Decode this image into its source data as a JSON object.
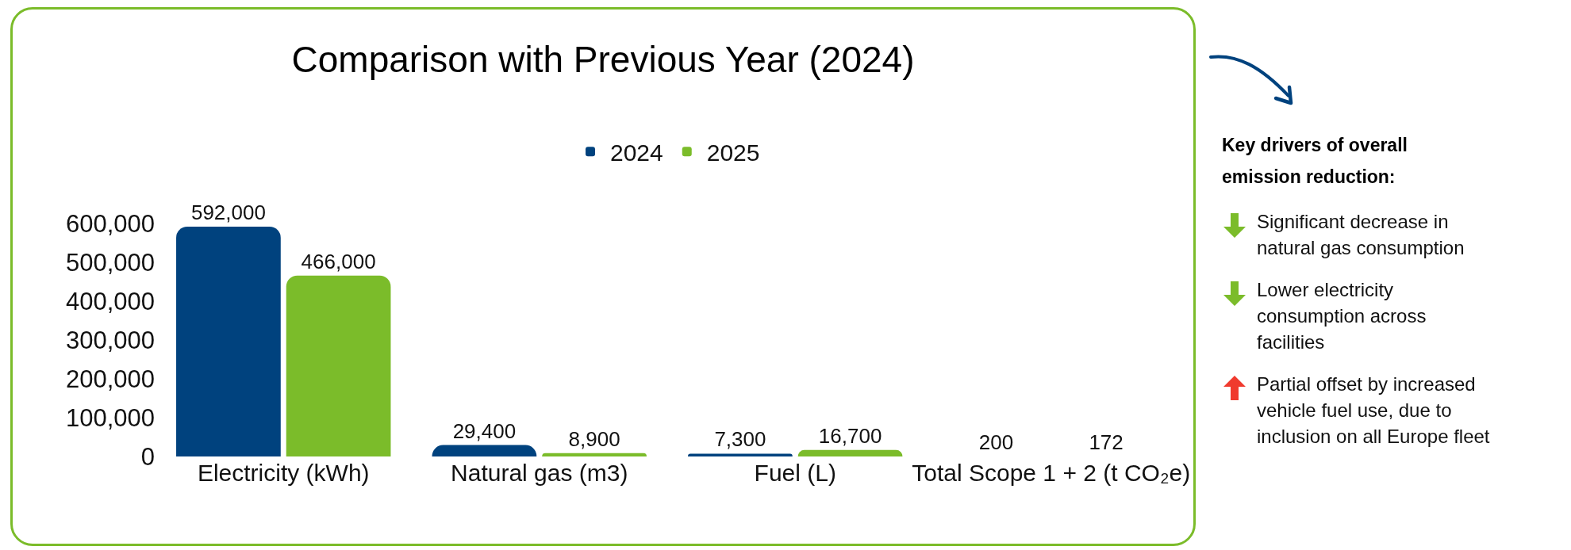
{
  "chart_data": {
    "type": "bar",
    "title": "Comparison with Previous Year (2024)",
    "categories": [
      "Electricity (kWh)",
      "Natural gas (m3)",
      "Fuel (L)",
      "Total Scope 1 + 2 (t CO₂e)"
    ],
    "series": [
      {
        "name": "2024",
        "color": "#00427e",
        "values": [
          592000,
          29400,
          7300,
          200
        ],
        "value_labels": [
          "592,000",
          "29,400",
          "7,300",
          "200"
        ]
      },
      {
        "name": "2025",
        "color": "#7bbc2a",
        "values": [
          466000,
          8900,
          16700,
          172
        ],
        "value_labels": [
          "466,000",
          "8,900",
          "16,700",
          "172"
        ]
      }
    ],
    "ylim": [
      0,
      600000
    ],
    "yticks": [
      0,
      {
        "value": 100000,
        "label": "100,000"
      },
      {
        "value": 200000,
        "label": "200,000"
      },
      {
        "value": 300000,
        "label": "300,000"
      },
      {
        "value": 400000,
        "label": "400,000"
      },
      {
        "value": 500000,
        "label": "500,000"
      },
      {
        "value": 600000,
        "label": "600,000"
      }
    ],
    "grid": false,
    "legend": "top",
    "annotations": [
      "Key drivers of overall emission reduction:",
      "Significant decrease in natural gas consumption",
      "Lower electricity consumption across facilities",
      "Partial offset by increased vehicle fuel use, due to inclusion on all Europe fleet"
    ]
  }
}
